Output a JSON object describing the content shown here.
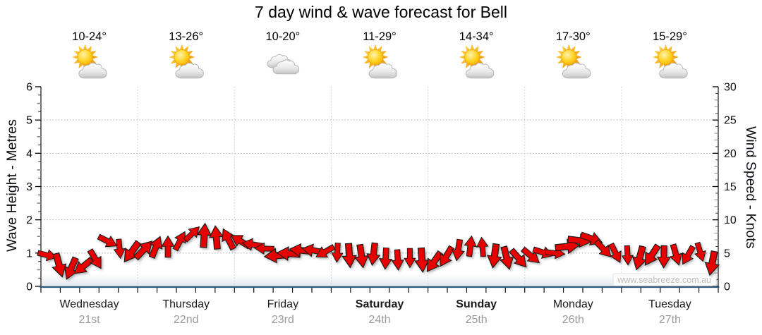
{
  "title": "7 day wind & wave forecast for Bell",
  "watermark": "www.seabreeze.com.au",
  "left_axis": {
    "title": "Wave Height - Metres",
    "tick_labels": [
      0,
      1,
      2,
      3,
      4,
      5,
      6
    ],
    "range": [
      0,
      6
    ]
  },
  "right_axis": {
    "title": "Wind Speed - Knots",
    "tick_labels": [
      0,
      5,
      10,
      15,
      20,
      25,
      30
    ],
    "range": [
      0,
      30
    ]
  },
  "days": [
    {
      "name": "Wednesday",
      "date": "21st",
      "temp": "10-24°",
      "icon": "sun-cloud-icon",
      "weekend": false
    },
    {
      "name": "Thursday",
      "date": "22nd",
      "temp": "13-26°",
      "icon": "sun-cloud-icon",
      "weekend": false
    },
    {
      "name": "Friday",
      "date": "23rd",
      "temp": "10-20°",
      "icon": "clouds-icon",
      "weekend": false
    },
    {
      "name": "Saturday",
      "date": "24th",
      "temp": "11-29°",
      "icon": "sun-cloud-icon",
      "weekend": true
    },
    {
      "name": "Sunday",
      "date": "25th",
      "temp": "14-34°",
      "icon": "sun-cloud-icon",
      "weekend": true
    },
    {
      "name": "Monday",
      "date": "26th",
      "temp": "17-30°",
      "icon": "sun-cloud-icon",
      "weekend": false
    },
    {
      "name": "Tuesday",
      "date": "27th",
      "temp": "15-29°",
      "icon": "sun-cloud-icon",
      "weekend": false
    }
  ],
  "chart_data": {
    "type": "line",
    "title": "7 day wind & wave forecast for Bell",
    "x_categories": [
      "Wednesday 21st",
      "Thursday 22nd",
      "Friday 23rd",
      "Saturday 24th",
      "Sunday 25th",
      "Monday 26th",
      "Tuesday 27th"
    ],
    "left_axis": {
      "label": "Wave Height - Metres",
      "range": [
        0,
        6
      ],
      "major_tick": 1,
      "minor_tick": 0.25
    },
    "right_axis": {
      "label": "Wind Speed - Knots",
      "range": [
        0,
        30
      ],
      "major_tick": 5,
      "minor_tick": 1
    },
    "grid": {
      "h_lines_metres": [
        1,
        2,
        3,
        4,
        5
      ],
      "v_lines": "day-boundaries",
      "style": "dotted"
    },
    "legend": "none",
    "series": [
      {
        "name": "Wind speed",
        "unit": "knots",
        "interval_hours": 3,
        "values": [
          4.3,
          3.6,
          3.0,
          3.2,
          4.2,
          6.8,
          5.6,
          5.0,
          5.2,
          5.5,
          6.3,
          7.1,
          8.1,
          7.7,
          7.3,
          7.0,
          6.6,
          6.0,
          5.3,
          5.0,
          5.2,
          5.6,
          5.5,
          5.2,
          5.0,
          4.5,
          4.3,
          4.5,
          4.6,
          4.3,
          4.5,
          4.1,
          3.7,
          4.4,
          5.3,
          5.7,
          5.5,
          5.0,
          4.6,
          4.4,
          4.7,
          5.1,
          4.9,
          5.8,
          6.6,
          6.8,
          6.0,
          5.3,
          4.9,
          4.4,
          4.7,
          4.4,
          4.6,
          4.4,
          4.8,
          3.9
        ]
      },
      {
        "name": "Wind direction (arrow screen heading, deg; 0=right, 90=down)",
        "unit": "degrees",
        "interval_hours": 3,
        "values": [
          20,
          70,
          110,
          140,
          60,
          30,
          90,
          120,
          310,
          290,
          270,
          300,
          320,
          280,
          260,
          240,
          210,
          190,
          185,
          180,
          178,
          182,
          188,
          150,
          95,
          90,
          88,
          92,
          90,
          86,
          91,
          89,
          130,
          115,
          95,
          275,
          265,
          100,
          80,
          55,
          35,
          15,
          5,
          355,
          10,
          25,
          40,
          60,
          85,
          105,
          125,
          95,
          80,
          115,
          70,
          100
        ]
      }
    ]
  },
  "colors": {
    "arrow_fill": "#e60000",
    "arrow_stroke": "#1c1c1c",
    "bottom_axis": "#2b5878",
    "axis_line": "#111111",
    "grid_h": "#ababab",
    "grid_v": "#c9c9c9",
    "day_text": "#1a1a1a",
    "date_text": "#9b9b9b",
    "watermark_text": "#bdbdbd",
    "sun_core": "#ffd21e",
    "sun_ray": "#f0930a",
    "cloud_fill": "#e9e9e9"
  }
}
